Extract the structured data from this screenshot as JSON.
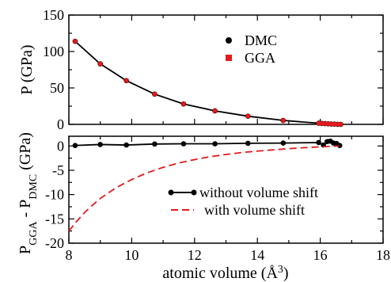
{
  "chart_data": [
    {
      "type": "scatter",
      "panel": "top",
      "ylabel": "P (GPa)",
      "xlim": [
        8,
        18
      ],
      "ylim": [
        0,
        150
      ],
      "yticks": [
        0,
        50,
        100,
        150
      ],
      "legend_position": "top-right",
      "series": [
        {
          "name": "DMC",
          "color": "#000000",
          "marker": "circle",
          "line": true,
          "x": [
            8.2,
            9.0,
            9.83,
            10.73,
            11.65,
            12.65,
            13.7,
            14.82,
            15.95,
            16.05,
            16.15,
            16.25,
            16.35,
            16.45,
            16.55,
            16.65
          ],
          "y": [
            114,
            83,
            60,
            41.5,
            28,
            18.5,
            11.2,
            5.4,
            1.6,
            1.3,
            1.0,
            0.8,
            0.5,
            0.3,
            0.1,
            0.0
          ]
        },
        {
          "name": "GGA",
          "color": "#e31a1c",
          "marker": "square",
          "line": false,
          "x": [
            8.2,
            9.0,
            9.83,
            10.73,
            11.65,
            12.65,
            13.7,
            14.82,
            15.95,
            16.05,
            16.15,
            16.25,
            16.35,
            16.45,
            16.55,
            16.65
          ],
          "y": [
            114,
            83,
            60,
            41.5,
            28,
            18.5,
            11.2,
            5.4,
            1.6,
            1.3,
            1.0,
            0.8,
            0.5,
            0.3,
            0.1,
            0.0
          ]
        }
      ]
    },
    {
      "type": "line",
      "panel": "bottom",
      "xlabel": "atomic volume (Å",
      "xlabel_sup": "3",
      "xlabel_end": ")",
      "ylabel_main": "P",
      "ylabel_sub1": "GGA",
      "ylabel_mid": " - P",
      "ylabel_sub2": "DMC",
      "ylabel_end": "  (GPa)",
      "xlim": [
        8,
        18
      ],
      "ylim": [
        -20,
        2
      ],
      "xticks": [
        8,
        10,
        12,
        14,
        16,
        18
      ],
      "yticks": [
        -20,
        -15,
        -10,
        -5,
        0
      ],
      "legend_position": "lower-right",
      "series": [
        {
          "name": "without volume shift",
          "color": "#000000",
          "style": "solid-marker",
          "x": [
            8.2,
            9.0,
            9.83,
            10.73,
            11.65,
            12.65,
            13.7,
            14.82,
            15.95,
            16.1,
            16.22,
            16.32,
            16.42,
            16.52,
            16.62
          ],
          "y": [
            0.1,
            0.3,
            0.2,
            0.4,
            0.45,
            0.45,
            0.55,
            0.6,
            0.7,
            0.2,
            0.9,
            1.0,
            0.6,
            0.5,
            0.1
          ]
        },
        {
          "name": "with volume shift",
          "color": "#e31a1c",
          "style": "dashed",
          "x": [
            8.0,
            8.25,
            8.5,
            8.75,
            9.0,
            9.5,
            10.0,
            10.5,
            11.0,
            11.5,
            12.0,
            12.5,
            13.0,
            13.5,
            14.0,
            14.5,
            15.0,
            15.5,
            16.0,
            16.3,
            16.6
          ],
          "y": [
            -17.5,
            -15.5,
            -13.7,
            -12.2,
            -10.8,
            -8.6,
            -6.9,
            -5.5,
            -4.4,
            -3.5,
            -2.8,
            -2.2,
            -1.75,
            -1.35,
            -1.05,
            -0.8,
            -0.55,
            -0.35,
            -0.18,
            -0.08,
            0.0
          ]
        }
      ]
    }
  ]
}
